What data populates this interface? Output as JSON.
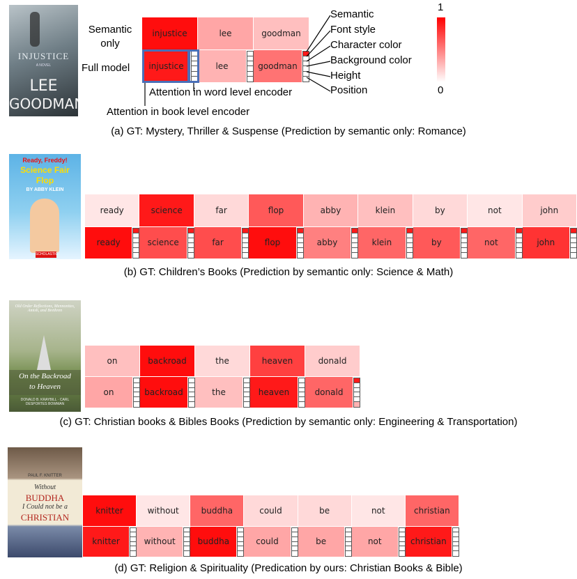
{
  "colors": {
    "max": "#ff0000",
    "min": "#ffffff",
    "highlight": "#4a6fb8"
  },
  "panel_a": {
    "cover": {
      "title": "INJUSTICE",
      "subtitle": "A NOVEL",
      "author1": "LEE",
      "author2": "GOODMAN"
    },
    "row_label_semantic": "Semantic only",
    "row_label_full": "Full model",
    "legend_items": [
      "Semantic",
      "Font style",
      "Character color",
      "Background color",
      "Height",
      "Position"
    ],
    "colorbar_max": "1",
    "colorbar_min": "0",
    "annot_word": "Attention in word level encoder",
    "annot_book": "Attention in book level encoder",
    "words": [
      "injustice",
      "lee",
      "goodman"
    ],
    "semantic_attn": [
      0.95,
      0.35,
      0.25
    ],
    "full_attn": [
      0.9,
      0.3,
      0.55
    ],
    "word_level": [
      [
        0,
        0,
        0,
        0,
        0,
        0
      ],
      [
        0,
        0,
        0,
        0,
        0,
        0
      ],
      [
        0.9,
        0,
        0,
        0,
        0,
        0
      ]
    ],
    "caption": "(a) GT: Mystery, Thriller & Suspense (Prediction by semantic only: Romance)"
  },
  "panel_b": {
    "cover": {
      "line1": "Ready, Freddy!",
      "line2": "Science Fair",
      "line3": "Flop",
      "line4": "BY ABBY KLEIN",
      "badge": "SCHOLASTIC"
    },
    "words": [
      "ready",
      "science",
      "far",
      "flop",
      "abby",
      "klein",
      "by",
      "not",
      "john"
    ],
    "semantic_attn": [
      0.1,
      0.9,
      0.15,
      0.65,
      0.3,
      0.25,
      0.15,
      0.1,
      0.2
    ],
    "full_attn": [
      0.95,
      0.7,
      0.7,
      0.95,
      0.5,
      0.6,
      0.65,
      0.6,
      0.8
    ],
    "word_level": [
      [
        0.9,
        0,
        0,
        0,
        0,
        0
      ],
      [
        0.9,
        0,
        0,
        0,
        0,
        0
      ],
      [
        0.9,
        0,
        0,
        0,
        0,
        0
      ],
      [
        0.9,
        0,
        0,
        0,
        0,
        0
      ],
      [
        0.9,
        0,
        0,
        0,
        0,
        0
      ],
      [
        0.9,
        0,
        0,
        0,
        0,
        0
      ],
      [
        0.9,
        0,
        0,
        0,
        0,
        0
      ],
      [
        0.9,
        0,
        0,
        0,
        0,
        0
      ],
      [
        0.9,
        0,
        0,
        0,
        0,
        0
      ]
    ],
    "caption": "(b) GT: Children’s Books (Prediction by semantic only: Science & Math)"
  },
  "panel_c": {
    "cover": {
      "top": "Old Order Reflections, Mennonites, Amish, and Brethren",
      "title1": "On the Backroad",
      "title2": "to Heaven",
      "authors": "DONALD B. KRAYBILL · CARL DESPORTES BOWMAN"
    },
    "words": [
      "on",
      "backroad",
      "the",
      "heaven",
      "donald"
    ],
    "semantic_attn": [
      0.25,
      0.95,
      0.15,
      0.75,
      0.2
    ],
    "full_attn": [
      0.35,
      0.95,
      0.25,
      0.9,
      0.6
    ],
    "word_level": [
      [
        0,
        0,
        0,
        0,
        0,
        0
      ],
      [
        0,
        0,
        0,
        0,
        0,
        0
      ],
      [
        0,
        0,
        0,
        0,
        0,
        0
      ],
      [
        0,
        0,
        0,
        0,
        0,
        0
      ],
      [
        0.9,
        0,
        0,
        0,
        0,
        0.3
      ]
    ],
    "caption": "(c) GT: Christian books & Bibles Books (Prediction by semantic only: Engineering & Transportation)"
  },
  "panel_d": {
    "cover": {
      "author": "PAUL F. KNITTER",
      "t1": "Without",
      "t2": "BUDDHA",
      "t3": "I Could not be a",
      "t4": "CHRISTIAN"
    },
    "words": [
      "knitter",
      "without",
      "buddha",
      "could",
      "be",
      "not",
      "christian"
    ],
    "semantic_attn": [
      0.95,
      0.1,
      0.6,
      0.15,
      0.15,
      0.1,
      0.6
    ],
    "full_attn": [
      0.9,
      0.3,
      0.95,
      0.35,
      0.35,
      0.35,
      0.9
    ],
    "word_level": [
      [
        0,
        0,
        0,
        0,
        0,
        0
      ],
      [
        0,
        0,
        0,
        0,
        0,
        0
      ],
      [
        0,
        0,
        0,
        0,
        0,
        0
      ],
      [
        0,
        0,
        0,
        0,
        0,
        0
      ],
      [
        0,
        0,
        0,
        0,
        0,
        0
      ],
      [
        0,
        0,
        0,
        0,
        0,
        0
      ],
      [
        0,
        0,
        0,
        0,
        0,
        0
      ]
    ],
    "caption": "(d) GT: Religion & Spirituality   (Predication by ours: Christian Books & Bible)"
  }
}
